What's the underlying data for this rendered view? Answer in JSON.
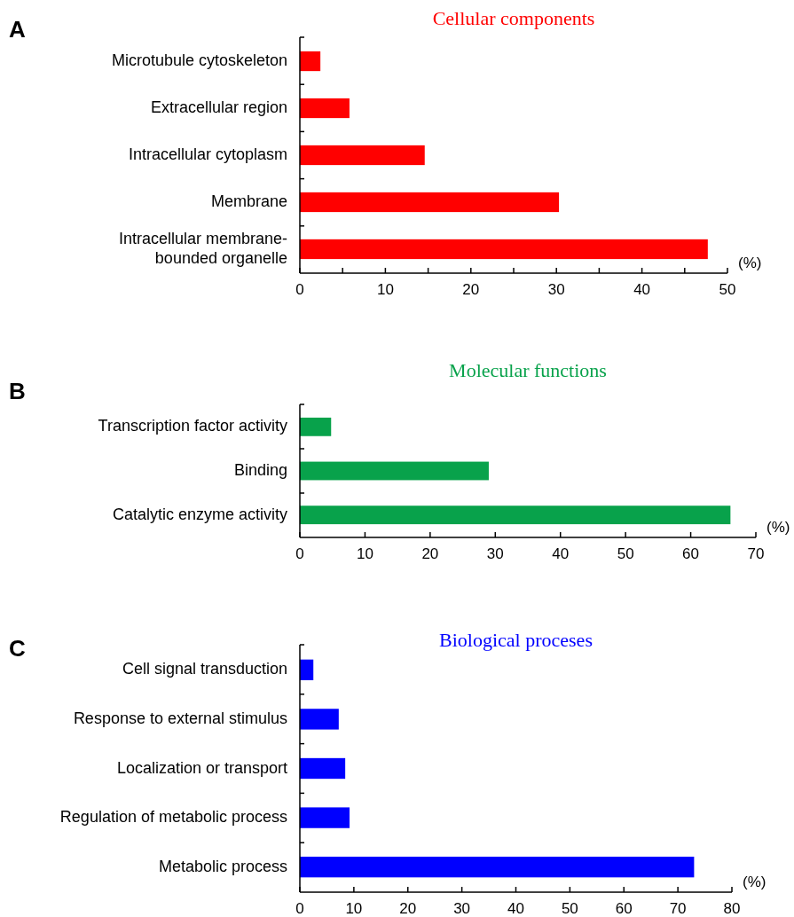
{
  "chart_data": [
    {
      "type": "bar",
      "orientation": "horizontal",
      "title": "Cellular components",
      "xlabel": "(%)",
      "annotations": [
        "A"
      ],
      "categories": [
        "Microtubule cytoskeleton",
        "Extracellular region",
        "Intracellular cytoplasm",
        "Membrane",
        "Intracellular membrane-bounded organelle"
      ],
      "series": [
        {
          "color": "#ff0000",
          "values": [
            2.4,
            5.8,
            14.6,
            30.3,
            47.7
          ]
        }
      ],
      "xlim": [
        0,
        50
      ],
      "xticks": [
        0,
        {
          "value": 5,
          "label": null
        },
        10,
        {
          "value": 15,
          "label": null
        },
        20,
        {
          "value": 25,
          "label": null
        },
        30,
        {
          "value": 35,
          "label": null
        },
        40,
        {
          "value": 45,
          "label": null
        },
        50
      ]
    },
    {
      "type": "bar",
      "orientation": "horizontal",
      "title": "Molecular functions",
      "xlabel": "(%)",
      "annotations": [
        "B"
      ],
      "categories": [
        "Transcription factor activity",
        "Binding",
        "Catalytic enzyme activity"
      ],
      "series": [
        {
          "color": "#08a24b",
          "values": [
            4.8,
            29.0,
            66.1
          ]
        }
      ],
      "xlim": [
        0,
        70
      ],
      "xticks": [
        0,
        10,
        20,
        30,
        40,
        50,
        60,
        70
      ]
    },
    {
      "type": "bar",
      "orientation": "horizontal",
      "title": "Biological proceses",
      "xlabel": "(%)",
      "annotations": [
        "C"
      ],
      "categories": [
        "Cell signal transduction",
        "Response to external stimulus",
        "Localization or transport",
        "Regulation of metabolic process",
        "Metabolic process"
      ],
      "series": [
        {
          "color": "#0000ff",
          "values": [
            2.5,
            7.2,
            8.4,
            9.2,
            73.0
          ]
        }
      ],
      "xlim": [
        0,
        80
      ],
      "xticks": [
        0,
        10,
        20,
        30,
        40,
        50,
        60,
        70,
        80
      ]
    }
  ]
}
